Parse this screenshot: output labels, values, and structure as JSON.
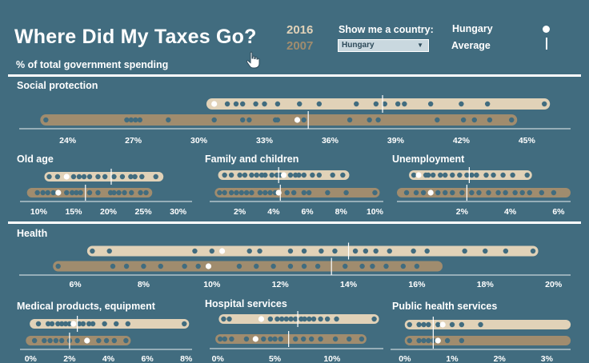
{
  "header": {
    "title": "Where Did My Taxes Go?",
    "subtitle": "% of total government spending",
    "cursor_icon": "hand-pointer-icon"
  },
  "controls": {
    "year_a": "2016",
    "year_b": "2007",
    "filter_label": "Show me a country:",
    "selected_country": "Hungary",
    "dropdown_icon": "chevron-down-icon"
  },
  "legend": {
    "hungary_label": "Hungary",
    "average_label": "Average",
    "hungary_marker_icon": "white-dot-icon",
    "average_marker_icon": "vertical-tick-icon"
  },
  "colors": {
    "background": "#416c7f",
    "track_2016": "#e1d2b8",
    "track_2007": "#a08c6e",
    "dot": "#416c7f",
    "highlight": "#ffffff"
  },
  "chart_data": [
    {
      "type": "dot-range",
      "title": "Social protection",
      "ylim_pct": [
        22,
        47
      ],
      "ticks": [
        "24%",
        "27%",
        "30%",
        "33%",
        "36%",
        "39%",
        "42%",
        "45%"
      ],
      "series": [
        {
          "year": "2016",
          "range": [
            30.6,
            45.8
          ],
          "hungary": 30.7,
          "average": 38.4,
          "values": [
            31.3,
            31.7,
            32.0,
            32.6,
            33.0,
            33.6,
            34.6,
            35.5,
            37.2,
            38.1,
            38.5,
            39.1,
            39.4,
            40.6,
            42.0,
            43.2,
            45.8
          ]
        },
        {
          "year": "2007",
          "range": [
            23.0,
            44.3
          ],
          "hungary": 34.5,
          "average": 35.0,
          "values": [
            23.0,
            26.7,
            26.9,
            27.1,
            27.3,
            28.6,
            30.7,
            32.0,
            32.3,
            33.5,
            33.6,
            34.8,
            36.9,
            37.8,
            38.2,
            40.9,
            42.1,
            42.6,
            43.3,
            44.3
          ]
        }
      ]
    },
    {
      "type": "dot-range",
      "title": "Old age",
      "ylim_pct": [
        8,
        32
      ],
      "ticks": [
        "10%",
        "15%",
        "20%",
        "25%",
        "30%"
      ],
      "series": [
        {
          "year": "2016",
          "range": [
            11.5,
            27.2
          ],
          "hungary": 14.0,
          "average": 20.4,
          "values": [
            11.5,
            12.7,
            15.0,
            15.8,
            16.5,
            17.3,
            18.5,
            19.5,
            20.8,
            22.0,
            23.2,
            23.8,
            24.8,
            26.8
          ]
        },
        {
          "year": "2007",
          "range": [
            9.0,
            25.6
          ],
          "hungary": 12.8,
          "average": 16.7,
          "values": [
            9.8,
            10.6,
            11.3,
            12.1,
            14.0,
            14.8,
            15.4,
            16.0,
            17.3,
            18.5,
            20.3,
            20.8,
            21.5,
            22.3,
            23.3,
            24.6,
            25.4
          ]
        }
      ]
    },
    {
      "type": "dot-range",
      "title": "Family and children",
      "ylim_pct": [
        0.5,
        10.5
      ],
      "ticks": [
        "2%",
        "4%",
        "6%",
        "8%",
        "10%"
      ],
      "series": [
        {
          "year": "2016",
          "range": [
            1.0,
            8.2
          ],
          "hungary": 4.6,
          "average": 4.3,
          "values": [
            1.1,
            1.5,
            2.0,
            2.3,
            2.7,
            3.0,
            3.3,
            3.5,
            3.9,
            4.2,
            4.4,
            5.0,
            5.3,
            5.5,
            5.8,
            6.3,
            6.7,
            7.5,
            8.1
          ]
        },
        {
          "year": "2007",
          "range": [
            0.8,
            10.0
          ],
          "hungary": 4.3,
          "average": 4.4,
          "values": [
            0.8,
            1.1,
            1.5,
            1.8,
            2.1,
            2.4,
            2.7,
            3.2,
            3.5,
            3.8,
            4.1,
            4.8,
            5.2,
            5.8,
            6.1,
            7.2,
            8.3,
            10.0
          ]
        }
      ]
    },
    {
      "type": "dot-range",
      "title": "Unemployment",
      "ylim_pct": [
        -0.5,
        6.5
      ],
      "ticks": [
        "2%",
        "4%",
        "6%"
      ],
      "series": [
        {
          "year": "2016",
          "range": [
            0.0,
            4.7
          ],
          "hungary": 0.2,
          "average": 2.3,
          "values": [
            0.0,
            0.5,
            0.6,
            0.8,
            1.1,
            1.3,
            1.6,
            1.9,
            2.2,
            2.4,
            2.6,
            3.0,
            3.3,
            3.7,
            4.1,
            4.7
          ]
        },
        {
          "year": "2007",
          "range": [
            -0.5,
            6.3
          ],
          "hungary": 0.7,
          "average": 2.2,
          "values": [
            -0.3,
            0.1,
            0.4,
            1.0,
            1.3,
            1.6,
            2.0,
            2.4,
            2.7,
            3.1,
            3.5,
            3.8,
            4.2,
            4.5,
            4.8,
            5.3,
            5.8
          ]
        }
      ]
    },
    {
      "type": "dot-range",
      "title": "Health",
      "ylim_pct": [
        4.5,
        20.5
      ],
      "ticks": [
        "6%",
        "8%",
        "10%",
        "12%",
        "14%",
        "16%",
        "18%",
        "20%"
      ],
      "series": [
        {
          "year": "2016",
          "range": [
            6.5,
            19.4
          ],
          "hungary": 10.3,
          "average": 14.0,
          "values": [
            6.5,
            7.0,
            9.5,
            10.0,
            11.1,
            11.4,
            12.3,
            12.7,
            13.2,
            13.6,
            14.2,
            14.5,
            14.8,
            15.2,
            15.9,
            16.3,
            17.4,
            18.0,
            18.6,
            19.4
          ]
        },
        {
          "year": "2007",
          "range": [
            5.5,
            16.6
          ],
          "hungary": 9.9,
          "average": 13.5,
          "values": [
            5.5,
            7.1,
            7.5,
            8.0,
            8.5,
            9.2,
            9.6,
            10.8,
            11.3,
            11.8,
            12.3,
            12.7,
            13.1,
            13.9,
            14.4,
            14.7,
            15.1,
            15.6,
            16.0
          ]
        }
      ]
    },
    {
      "type": "dot-range",
      "title": "Medical products, equipment",
      "ylim_pct": [
        -0.3,
        8.3
      ],
      "ticks": [
        "0%",
        "2%",
        "4%",
        "6%",
        "8%"
      ],
      "series": [
        {
          "year": "2016",
          "range": [
            0.2,
            7.9
          ],
          "hungary": 2.2,
          "average": 2.4,
          "values": [
            0.4,
            0.9,
            1.1,
            1.4,
            1.6,
            1.8,
            2.0,
            2.5,
            2.7,
            3.0,
            3.2,
            3.8,
            4.4,
            5.0,
            7.9
          ]
        },
        {
          "year": "2007",
          "range": [
            0.0,
            4.9
          ],
          "hungary": 2.9,
          "average": 2.0,
          "values": [
            0.2,
            0.7,
            1.0,
            1.3,
            1.6,
            2.0,
            2.4,
            3.5,
            3.9,
            4.3,
            4.9
          ]
        }
      ]
    },
    {
      "type": "dot-range",
      "title": "Hospital services",
      "ylim_pct": [
        -0.3,
        14.5
      ],
      "ticks": [
        "0%",
        "5%",
        "10%"
      ],
      "series": [
        {
          "year": "2016",
          "range": [
            0.5,
            13.7
          ],
          "hungary": 3.8,
          "average": 7.0,
          "values": [
            0.5,
            1.0,
            4.6,
            5.2,
            5.6,
            6.0,
            6.4,
            6.8,
            7.3,
            7.6,
            8.0,
            8.4,
            9.0,
            9.6,
            10.4,
            13.7
          ]
        },
        {
          "year": "2007",
          "range": [
            0.2,
            12.6
          ],
          "hungary": 3.3,
          "average": 6.2,
          "values": [
            0.2,
            0.6,
            1.2,
            2.5,
            4.0,
            4.6,
            5.0,
            5.5,
            6.8,
            7.5,
            8.2,
            9.0,
            10.3,
            11.5,
            12.6
          ]
        }
      ]
    },
    {
      "type": "dot-range",
      "title": "Public health services",
      "ylim_pct": [
        -0.2,
        3.5
      ],
      "ticks": [
        "0%",
        "1%",
        "2%",
        "3%"
      ],
      "series": [
        {
          "year": "2016",
          "range": [
            0.1,
            3.4
          ],
          "hungary": 0.8,
          "average": 0.6,
          "values": [
            0.1,
            0.3,
            0.4,
            0.5,
            0.7,
            1.0,
            1.2,
            1.6
          ]
        },
        {
          "year": "2007",
          "range": [
            0.1,
            3.4
          ],
          "hungary": 0.7,
          "average": 0.6,
          "values": [
            0.1,
            0.3,
            0.4,
            0.5,
            0.6,
            0.9,
            1.2
          ]
        }
      ]
    }
  ]
}
